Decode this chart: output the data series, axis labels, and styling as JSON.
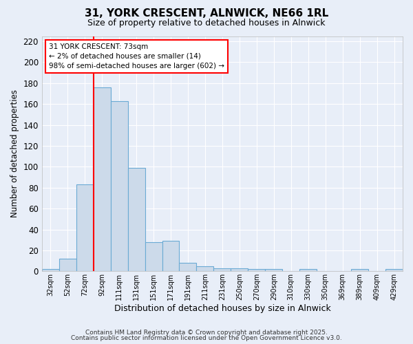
{
  "title": "31, YORK CRESCENT, ALNWICK, NE66 1RL",
  "subtitle": "Size of property relative to detached houses in Alnwick",
  "xlabel": "Distribution of detached houses by size in Alnwick",
  "ylabel": "Number of detached properties",
  "bar_labels": [
    "32sqm",
    "52sqm",
    "72sqm",
    "92sqm",
    "111sqm",
    "131sqm",
    "151sqm",
    "171sqm",
    "191sqm",
    "211sqm",
    "231sqm",
    "250sqm",
    "270sqm",
    "290sqm",
    "310sqm",
    "330sqm",
    "350sqm",
    "369sqm",
    "389sqm",
    "409sqm",
    "429sqm"
  ],
  "bar_heights": [
    2,
    12,
    83,
    176,
    163,
    99,
    28,
    29,
    8,
    5,
    3,
    3,
    2,
    2,
    0,
    2,
    0,
    0,
    2,
    0,
    2
  ],
  "bar_color": "#ccdaea",
  "bar_edgecolor": "#6aaad4",
  "redline_x": 2.5,
  "ylim": [
    0,
    225
  ],
  "yticks": [
    0,
    20,
    40,
    60,
    80,
    100,
    120,
    140,
    160,
    180,
    200,
    220
  ],
  "annotation_title": "31 YORK CRESCENT: 73sqm",
  "annotation_line1": "← 2% of detached houses are smaller (14)",
  "annotation_line2": "98% of semi-detached houses are larger (602) →",
  "footer_line1": "Contains HM Land Registry data © Crown copyright and database right 2025.",
  "footer_line2": "Contains public sector information licensed under the Open Government Licence v3.0.",
  "bg_color": "#e8eef8",
  "plot_bg_color": "#e8eef8",
  "grid_color": "#ffffff",
  "grid_linewidth": 0.8
}
